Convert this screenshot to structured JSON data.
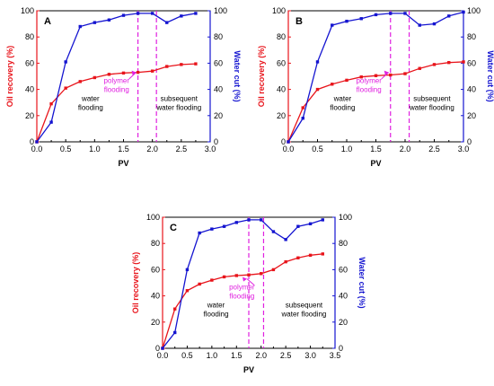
{
  "colors": {
    "recovery": "#e8141b",
    "water_cut": "#1414d0",
    "polymer": "#e020e0",
    "axis": "#000000"
  },
  "chart_data": [
    {
      "type": "line",
      "panel_label": "A",
      "xlabel": "PV",
      "ylabel_left": "Oil recovery (%)",
      "ylabel_right": "Water cut (%)",
      "xlim": [
        0,
        3.0
      ],
      "xticks": [
        "0.0",
        "0.5",
        "1.0",
        "1.5",
        "2.0",
        "2.5",
        "3.0"
      ],
      "ylim_left": [
        0,
        100
      ],
      "yticks_left": [
        "0",
        "20",
        "40",
        "60",
        "80",
        "100"
      ],
      "ylim_right": [
        0,
        100
      ],
      "yticks_right": [
        "0",
        "20",
        "40",
        "60",
        "80",
        "100"
      ],
      "polymer_start": 1.75,
      "polymer_end": 2.07,
      "annotations": {
        "water_flooding": "water flooding",
        "polymer_flooding": "polymer flooding",
        "subsequent": "subsequent water flooding"
      },
      "series": [
        {
          "name": "Oil recovery (%)",
          "axis": "left",
          "x": [
            0,
            0.25,
            0.5,
            0.75,
            1.0,
            1.25,
            1.5,
            1.75,
            2.0,
            2.25,
            2.5,
            2.75
          ],
          "y": [
            0,
            29,
            41,
            46,
            49,
            51.5,
            52.5,
            53,
            54,
            57.5,
            59,
            59.5
          ]
        },
        {
          "name": "Water cut (%)",
          "axis": "right",
          "x": [
            0,
            0.25,
            0.5,
            0.75,
            1.0,
            1.25,
            1.5,
            1.75,
            2.0,
            2.25,
            2.5,
            2.75
          ],
          "y": [
            0,
            15,
            61,
            88,
            91,
            93,
            96.5,
            98,
            98,
            91,
            96,
            98
          ]
        }
      ]
    },
    {
      "type": "line",
      "panel_label": "B",
      "xlabel": "PV",
      "ylabel_left": "Oil recovery (%)",
      "ylabel_right": "Water cut (%)",
      "xlim": [
        0,
        3.0
      ],
      "xticks": [
        "0.0",
        "0.5",
        "1.0",
        "1.5",
        "2.0",
        "2.5",
        "3.0"
      ],
      "ylim_left": [
        0,
        100
      ],
      "yticks_left": [
        "0",
        "20",
        "40",
        "60",
        "80",
        "100"
      ],
      "ylim_right": [
        0,
        100
      ],
      "yticks_right": [
        "0",
        "20",
        "40",
        "60",
        "80",
        "100"
      ],
      "polymer_start": 1.75,
      "polymer_end": 2.07,
      "annotations": {
        "water_flooding": "water flooding",
        "polymer_flooding": "polymer flooding",
        "subsequent": "subsequent water flooding"
      },
      "series": [
        {
          "name": "Oil recovery (%)",
          "axis": "left",
          "x": [
            0,
            0.25,
            0.5,
            0.75,
            1.0,
            1.25,
            1.5,
            1.75,
            2.0,
            2.25,
            2.5,
            2.75,
            3.0
          ],
          "y": [
            0,
            26,
            40,
            44,
            47,
            49.5,
            50.5,
            51,
            52,
            56,
            59,
            60.5,
            61
          ]
        },
        {
          "name": "Water cut (%)",
          "axis": "right",
          "x": [
            0,
            0.25,
            0.5,
            0.75,
            1.0,
            1.25,
            1.5,
            1.75,
            2.0,
            2.25,
            2.5,
            2.75,
            3.0
          ],
          "y": [
            0,
            18,
            61,
            89,
            92,
            94,
            97,
            98,
            98,
            89,
            90,
            96,
            99
          ]
        }
      ]
    },
    {
      "type": "line",
      "panel_label": "C",
      "xlabel": "PV",
      "ylabel_left": "Oil recovery (%)",
      "ylabel_right": "Water cut (%)",
      "xlim": [
        0,
        3.5
      ],
      "xticks": [
        "0.0",
        "0.5",
        "1.0",
        "1.5",
        "2.0",
        "2.5",
        "3.0",
        "3.5"
      ],
      "ylim_left": [
        0,
        100
      ],
      "yticks_left": [
        "0",
        "20",
        "40",
        "60",
        "80",
        "100"
      ],
      "ylim_right": [
        0,
        100
      ],
      "yticks_right": [
        "0",
        "20",
        "40",
        "60",
        "80",
        "100"
      ],
      "polymer_start": 1.75,
      "polymer_end": 2.05,
      "annotations": {
        "water_flooding": "water flooding",
        "polymer_flooding": "polymer flooding",
        "subsequent": "subsequent water flooding"
      },
      "series": [
        {
          "name": "Oil recovery (%)",
          "axis": "left",
          "x": [
            0,
            0.25,
            0.5,
            0.75,
            1.0,
            1.25,
            1.5,
            1.75,
            2.0,
            2.25,
            2.5,
            2.75,
            3.0,
            3.25
          ],
          "y": [
            0,
            30,
            44,
            49,
            52,
            54.5,
            55.5,
            56,
            57,
            60,
            66,
            69,
            71,
            72
          ]
        },
        {
          "name": "Water cut (%)",
          "axis": "right",
          "x": [
            0,
            0.25,
            0.5,
            0.75,
            1.0,
            1.25,
            1.5,
            1.75,
            2.0,
            2.25,
            2.5,
            2.75,
            3.0,
            3.25
          ],
          "y": [
            0,
            12,
            60,
            88,
            91,
            93,
            96,
            98,
            98,
            89,
            83,
            93,
            95,
            98
          ]
        }
      ]
    }
  ]
}
